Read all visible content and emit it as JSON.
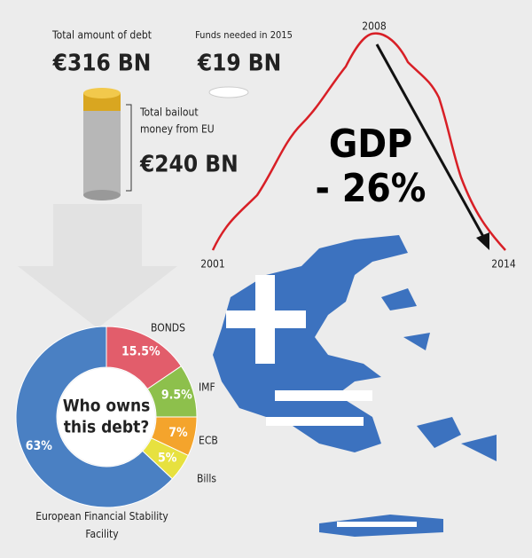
{
  "stats": [
    {
      "label": "Total amount of debt",
      "value": "€316 BN"
    },
    {
      "label": "Funds needed in 2015",
      "value": "€19 BN"
    }
  ],
  "bailout": {
    "label_lines": [
      "Total bailout",
      "money from EU"
    ],
    "value": "€240 BN"
  },
  "gdp": {
    "title": "GDP",
    "change": "- 26%",
    "years": [
      "2001",
      "2008",
      "2014"
    ]
  },
  "chart_data": {
    "type": "pie",
    "donut": true,
    "center_label_lines": [
      "Who owns",
      "this debt?"
    ],
    "categories": [
      "BONDS",
      "IMF",
      "ECB",
      "Bills",
      "European Financial Stability Facility"
    ],
    "values": [
      15.5,
      9.5,
      7,
      5,
      63
    ],
    "value_labels": [
      "15.5%",
      "9.5%",
      "7%",
      "5%",
      "63%"
    ],
    "colors": [
      "#e25d6b",
      "#8dc04c",
      "#f4a42c",
      "#e7e13f",
      "#4a80c3"
    ]
  }
}
